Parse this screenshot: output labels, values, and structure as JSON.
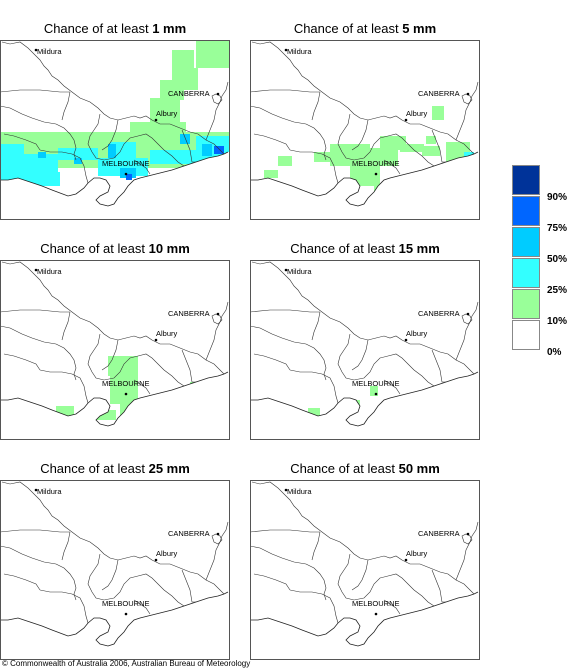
{
  "panels": [
    {
      "title_prefix": "Chance of at least ",
      "threshold": "1 mm",
      "level": 4
    },
    {
      "title_prefix": "Chance of at least ",
      "threshold": "5 mm",
      "level": 3
    },
    {
      "title_prefix": "Chance of at least ",
      "threshold": "10 mm",
      "level": 2
    },
    {
      "title_prefix": "Chance of at least ",
      "threshold": "15 mm",
      "level": 1
    },
    {
      "title_prefix": "Chance of at least ",
      "threshold": "25 mm",
      "level": 0
    },
    {
      "title_prefix": "Chance of at least ",
      "threshold": "50 mm",
      "level": 0
    }
  ],
  "places": {
    "mildura": "Mildura",
    "canberra": "CANBERRA",
    "albury": "Albury",
    "melbourne": "MELBOURNE"
  },
  "legend": {
    "labels": [
      "90%",
      "75%",
      "50%",
      "25%",
      "10%",
      "0%"
    ],
    "colors": [
      "#003399",
      "#0066ff",
      "#00ccff",
      "#33ffff",
      "#99ff99",
      "#ffffff"
    ]
  },
  "copyright": "© Commonwealth of Australia 2006, Australian Bureau of Meteorology"
}
